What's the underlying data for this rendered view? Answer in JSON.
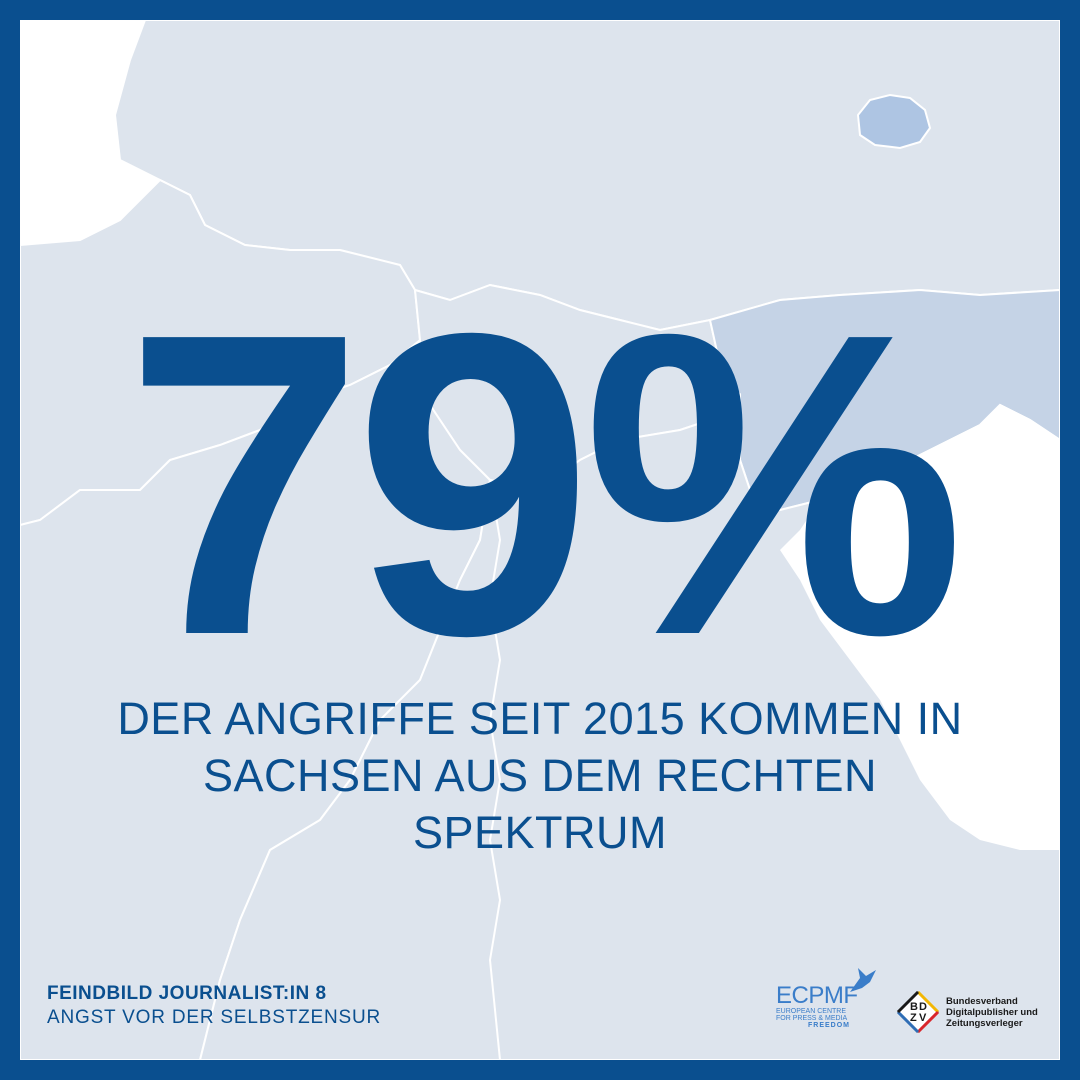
{
  "headline": {
    "value": "79%",
    "text": "DER ANGRIFFE SEIT 2015 KOMMEN IN SACHSEN AUS DEM RECHTEN SPEKTRUM"
  },
  "series": {
    "title": "FEINDBILD JOURNALIST:IN 8",
    "subtitle": "ANGST VOR DER SELBSTZENSUR"
  },
  "logos": {
    "ecpmf": {
      "name": "ECPMF",
      "line1": "EUROPEAN CENTRE",
      "line2": "FOR PRESS & MEDIA",
      "line3": "FREEDOM"
    },
    "bdzv": {
      "mark_letters": [
        "B",
        "D",
        "Z",
        "V"
      ],
      "line1": "Bundesverband",
      "line2": "Digitalpublisher und",
      "line3": "Zeitungsverleger"
    }
  },
  "colors": {
    "accent": "#0a4f8f",
    "map_fill": "#dde4ed",
    "map_highlight": "#c5d3e6",
    "map_strong": "#aec5e3"
  },
  "map": {
    "region": "Germany",
    "highlighted_region": "Sachsen"
  }
}
